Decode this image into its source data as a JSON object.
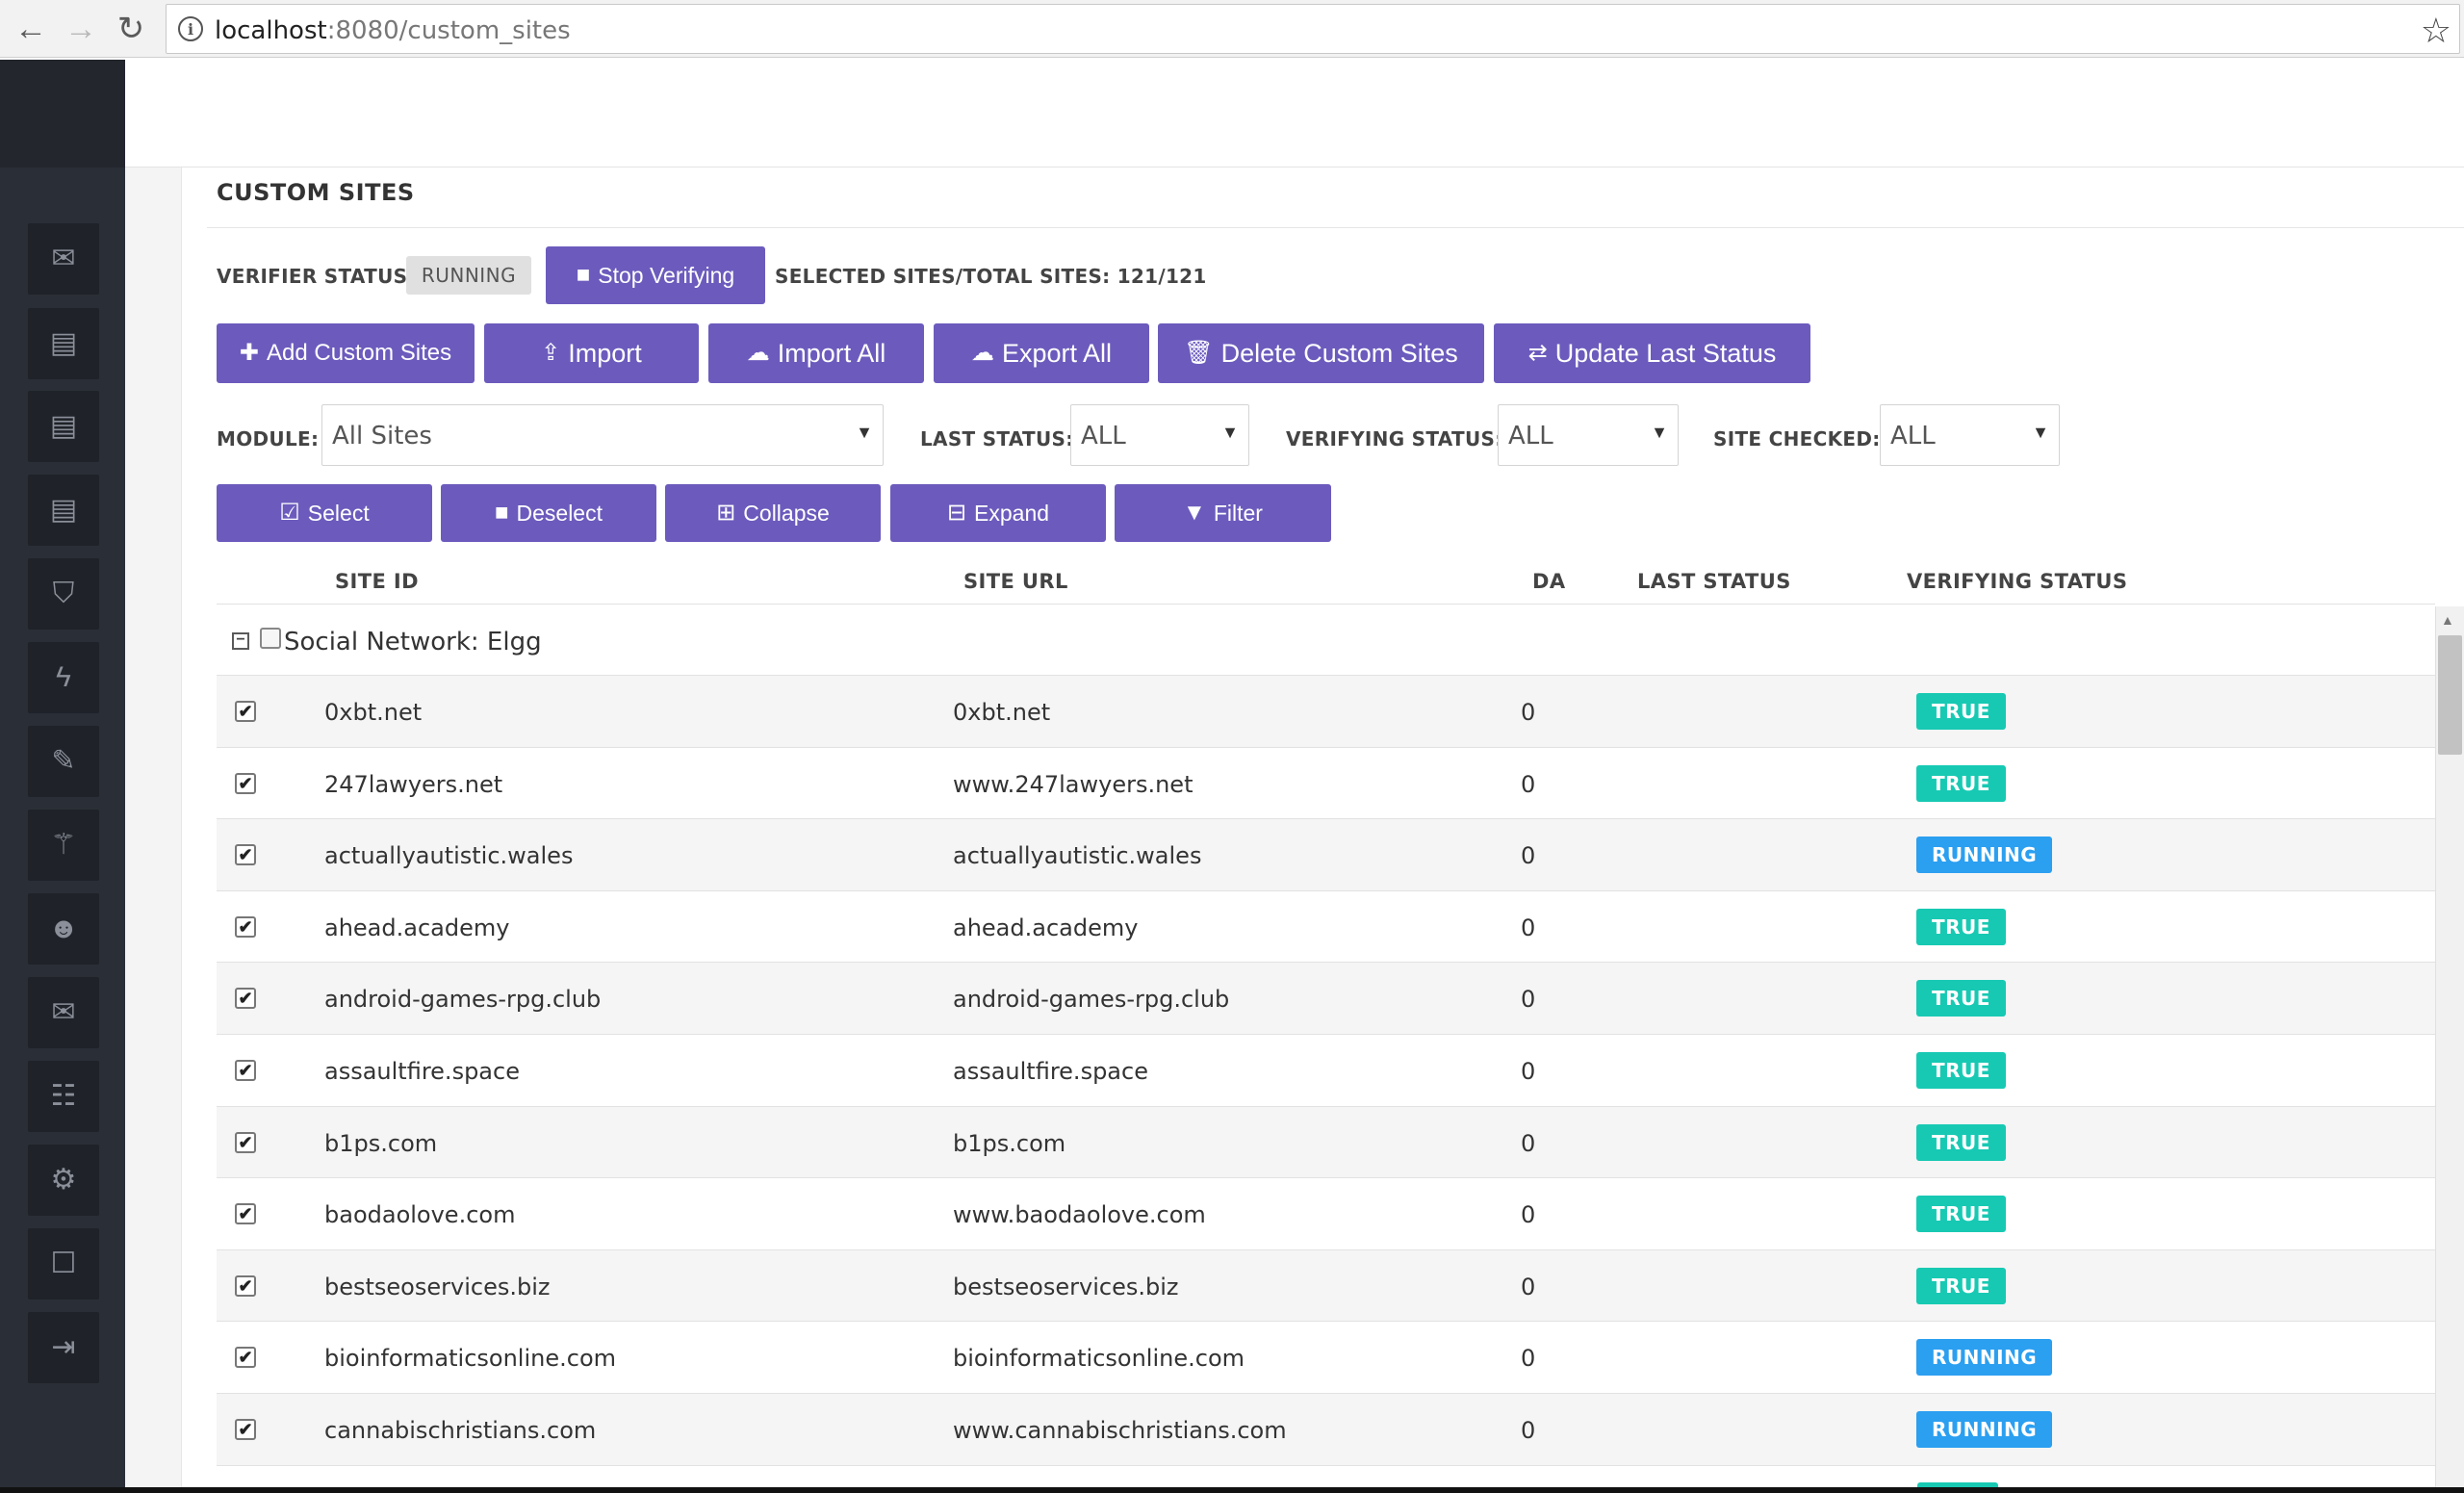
{
  "browser": {
    "url_host": "localhost",
    "url_rest": ":8080/custom_sites"
  },
  "sidebar": {
    "icons": [
      "envelope-icon",
      "book-icon",
      "book-icon",
      "book-icon",
      "shield-icon",
      "bolt-icon",
      "edit-icon",
      "magic-icon",
      "users-icon",
      "envelope-icon",
      "list-icon",
      "gears-icon",
      "calendar-icon",
      "sign-out-icon"
    ],
    "glyphs": [
      "✉",
      "▤",
      "▤",
      "▤",
      "⛉",
      "ϟ",
      "✎",
      "⚚",
      "☻",
      "✉",
      "☷",
      "⚙",
      "☐",
      "⇥"
    ]
  },
  "page": {
    "title": "CUSTOM SITES",
    "verifier_status_label": "VERIFIER STATUS:",
    "verifier_status_value": "RUNNING",
    "stop_verifying": "Stop Verifying",
    "selected_total": "SELECTED SITES/TOTAL SITES: 121/121"
  },
  "actions": {
    "add": "Add Custom Sites",
    "import": "Import",
    "import_all": "Import All",
    "export_all": "Export All",
    "delete": "Delete Custom Sites",
    "update": "Update Last Status"
  },
  "filters": {
    "module_label": "MODULE:",
    "module_value": "All Sites",
    "last_status_label": "LAST STATUS:",
    "last_status_value": "ALL",
    "verifying_status_label": "VERIFYING STATUS:",
    "verifying_status_value": "ALL",
    "site_checked_label": "SITE CHECKED:",
    "site_checked_value": "ALL"
  },
  "tools": {
    "select": "Select",
    "deselect": "Deselect",
    "collapse": "Collapse",
    "expand": "Expand",
    "filter": "Filter"
  },
  "table": {
    "headers": {
      "site_id": "SITE ID",
      "site_url": "SITE URL",
      "da": "DA",
      "last_status": "LAST STATUS",
      "verifying_status": "VERIFYING STATUS"
    },
    "group": "Social Network: Elgg",
    "rows": [
      {
        "id": "0xbt.net",
        "url": "0xbt.net",
        "da": "0",
        "last": "",
        "status": "TRUE"
      },
      {
        "id": "247lawyers.net",
        "url": "www.247lawyers.net",
        "da": "0",
        "last": "",
        "status": "TRUE"
      },
      {
        "id": "actuallyautistic.wales",
        "url": "actuallyautistic.wales",
        "da": "0",
        "last": "",
        "status": "RUNNING"
      },
      {
        "id": "ahead.academy",
        "url": "ahead.academy",
        "da": "0",
        "last": "",
        "status": "TRUE"
      },
      {
        "id": "android-games-rpg.club",
        "url": "android-games-rpg.club",
        "da": "0",
        "last": "",
        "status": "TRUE"
      },
      {
        "id": "assaultfire.space",
        "url": "assaultfire.space",
        "da": "0",
        "last": "",
        "status": "TRUE"
      },
      {
        "id": "b1ps.com",
        "url": "b1ps.com",
        "da": "0",
        "last": "",
        "status": "TRUE"
      },
      {
        "id": "baodaolove.com",
        "url": "www.baodaolove.com",
        "da": "0",
        "last": "",
        "status": "TRUE"
      },
      {
        "id": "bestseoservices.biz",
        "url": "bestseoservices.biz",
        "da": "0",
        "last": "",
        "status": "TRUE"
      },
      {
        "id": "bioinformaticsonline.com",
        "url": "bioinformaticsonline.com",
        "da": "0",
        "last": "",
        "status": "RUNNING"
      },
      {
        "id": "cannabischristians.com",
        "url": "www.cannabischristians.com",
        "da": "0",
        "last": "",
        "status": "RUNNING"
      }
    ]
  },
  "colors": {
    "accent": "#6c5bbd",
    "true_badge": "#17c9b3",
    "running_badge": "#2b9ff0",
    "sidebar": "#2a2e36"
  }
}
